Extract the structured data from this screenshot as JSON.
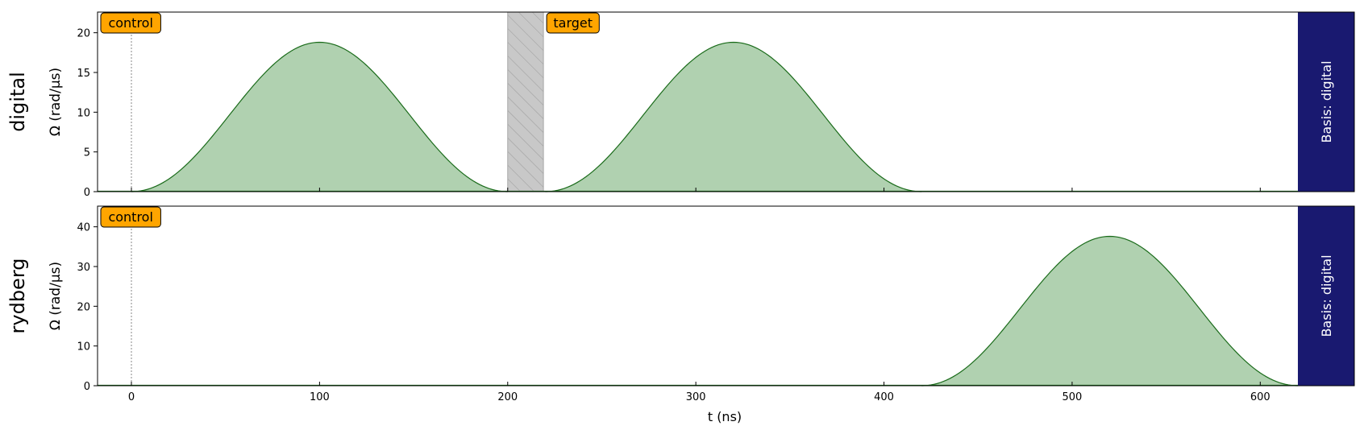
{
  "chart_data": [
    {
      "type": "area",
      "channel_label": "digital",
      "ylabel": "Ω (rad/µs)",
      "xlim": [
        -18,
        650
      ],
      "ylim": [
        0,
        22.6
      ],
      "xticks": [
        0,
        100,
        200,
        300,
        400,
        500,
        600
      ],
      "yticks": [
        0,
        5,
        10,
        15,
        20
      ],
      "series": [
        {
          "values": {
            "pulse_1": {
              "start_ns": 0,
              "end_ns": 200,
              "peak_ns": 100,
              "peak": 18.8
            },
            "pulse_2": {
              "start_ns": 220,
              "end_ns": 420,
              "peak_ns": 320,
              "peak": 18.8
            }
          }
        }
      ],
      "delay_region": {
        "from_ns": 200,
        "to_ns": 219
      },
      "annotations": [
        {
          "text": "control",
          "at_ns": -18
        },
        {
          "text": "target",
          "at_ns": 219
        }
      ],
      "marker_line_ns": 0,
      "basis_label": "Basis: digital",
      "basis_band_from_ns": 620
    },
    {
      "type": "area",
      "channel_label": "rydberg",
      "ylabel": "Ω (rad/µs)",
      "xlabel": "t (ns)",
      "xlim": [
        -18,
        650
      ],
      "ylim": [
        0,
        45.2
      ],
      "xticks": [
        0,
        100,
        200,
        300,
        400,
        500,
        600
      ],
      "yticks": [
        0,
        10,
        20,
        30,
        40
      ],
      "series": [
        {
          "values": {
            "pulse_1": {
              "start_ns": 420,
              "end_ns": 620,
              "peak_ns": 520,
              "peak": 37.6
            }
          }
        }
      ],
      "annotations": [
        {
          "text": "control",
          "at_ns": -18
        }
      ],
      "marker_line_ns": 0,
      "basis_label": "Basis: digital",
      "basis_band_from_ns": 620
    }
  ],
  "colors": {
    "fill": "#b0d1b0",
    "line": "#1a6b1a",
    "annotation_bg": "#ffa500",
    "basis_band": "#191970",
    "delay_fill": "#c8c8c8"
  }
}
